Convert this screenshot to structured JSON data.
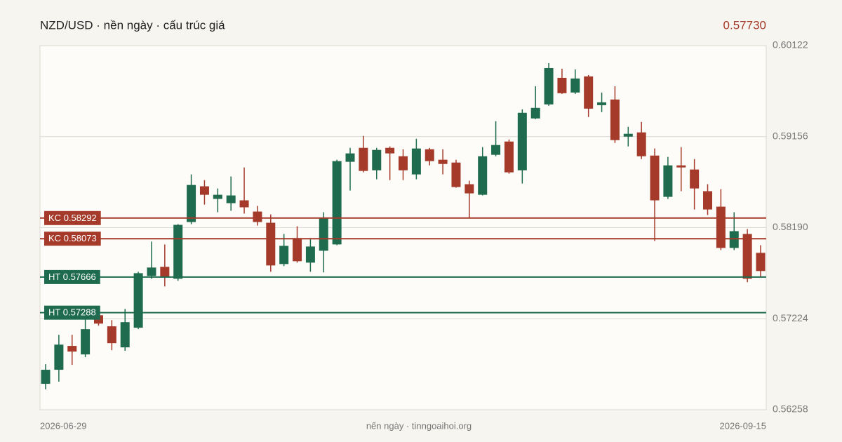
{
  "chart_data": {
    "type": "candlestick",
    "title": "NZD/USD · nền ngày · cấu trúc giá",
    "last_price": {
      "value": 0.5773,
      "label": "0.57730"
    },
    "footer": "nến ngày · tinngoaihoi.org",
    "categories": [
      "2026-06-29",
      null,
      null,
      null,
      null,
      null,
      null,
      null,
      null,
      null,
      null,
      null,
      null,
      null,
      null,
      null,
      null,
      null,
      null,
      null,
      null,
      null,
      null,
      null,
      null,
      null,
      null,
      null,
      null,
      null,
      null,
      null,
      null,
      null,
      null,
      null,
      null,
      null,
      null,
      null,
      null,
      null,
      null,
      null,
      null,
      null,
      null,
      null,
      null,
      null,
      null,
      null,
      null,
      null,
      "2026-09-15"
    ],
    "open": [
      0.56533,
      0.56682,
      0.56935,
      0.56845,
      0.57261,
      0.57143,
      0.5692,
      0.57128,
      0.57678,
      0.57774,
      0.57648,
      0.5825,
      0.58629,
      0.58495,
      0.5845,
      0.5848,
      0.58361,
      0.58242,
      0.57804,
      0.58079,
      0.57819,
      0.57945,
      0.58012,
      0.58889,
      0.59037,
      0.58799,
      0.59037,
      0.58948,
      0.58755,
      0.59022,
      0.58911,
      0.58881,
      0.58651,
      0.58539,
      0.58963,
      0.59104,
      0.58799,
      0.59349,
      0.59498,
      0.5978,
      0.59624,
      0.59795,
      0.5949,
      0.5955,
      0.59156,
      0.59201,
      0.58955,
      0.58517,
      0.58851,
      0.58807,
      0.58577,
      0.58413,
      0.57975,
      0.58123,
      0.57923
    ],
    "high": [
      0.56741,
      0.57053,
      0.57053,
      0.57224,
      0.57336,
      0.57209,
      0.57328,
      0.57722,
      0.58042,
      0.58012,
      0.58227,
      0.58755,
      0.58695,
      0.58606,
      0.58733,
      0.58829,
      0.58421,
      0.58331,
      0.58123,
      0.58205,
      0.58079,
      0.58354,
      0.58911,
      0.59037,
      0.59164,
      0.59037,
      0.59052,
      0.59022,
      0.59134,
      0.59037,
      0.59022,
      0.58911,
      0.58688,
      0.59045,
      0.5932,
      0.59126,
      0.59446,
      0.59691,
      0.59936,
      0.59877,
      0.59869,
      0.5981,
      0.59624,
      0.59691,
      0.5926,
      0.59312,
      0.5903,
      0.58941,
      0.59045,
      0.58918,
      0.58651,
      0.58599,
      0.58354,
      0.58175,
      0.58004
    ],
    "low": [
      0.56474,
      0.56556,
      0.56734,
      0.56816,
      0.5715,
      0.5689,
      0.56883,
      0.57113,
      0.57648,
      0.57566,
      0.57626,
      0.58227,
      0.58435,
      0.58354,
      0.58369,
      0.58339,
      0.58212,
      0.57722,
      0.57782,
      0.57819,
      0.57722,
      0.57715,
      0.58004,
      0.58584,
      0.58777,
      0.58703,
      0.58695,
      0.58695,
      0.58703,
      0.58851,
      0.58755,
      0.58614,
      0.58287,
      0.58532,
      0.58948,
      0.58762,
      0.58658,
      0.59342,
      0.59483,
      0.59609,
      0.59609,
      0.59364,
      0.59416,
      0.59089,
      0.59052,
      0.58918,
      0.58049,
      0.58495,
      0.58577,
      0.58383,
      0.58324,
      0.57952,
      0.57952,
      0.57611,
      0.57663
    ],
    "close": [
      0.56682,
      0.56949,
      0.56875,
      0.57113,
      0.57172,
      0.56964,
      0.57187,
      0.57707,
      0.57767,
      0.57663,
      0.5822,
      0.58643,
      0.58539,
      0.58539,
      0.58532,
      0.58406,
      0.5825,
      0.57789,
      0.57997,
      0.57834,
      0.5799,
      0.58294,
      0.58896,
      0.58978,
      0.58792,
      0.59015,
      0.58978,
      0.58799,
      0.5903,
      0.58896,
      0.58866,
      0.58621,
      0.58554,
      0.58948,
      0.59067,
      0.58777,
      0.59409,
      0.59461,
      0.59884,
      0.59617,
      0.59773,
      0.59453,
      0.5952,
      0.59119,
      0.59186,
      0.58948,
      0.5848,
      0.58851,
      0.58829,
      0.58606,
      0.58383,
      0.57975,
      0.58153,
      0.57648,
      0.5773
    ],
    "up_color": "#1e6b50",
    "down_color": "#a63a2a",
    "ylim": [
      0.56258,
      0.60122
    ],
    "yticks": [
      0.56258,
      0.57224,
      {
        "value": 0.5819,
        "label": "0.58190"
      },
      0.59156,
      0.60122
    ],
    "grid": true,
    "levels": [
      {
        "name": "KC",
        "value": 0.58292,
        "color": "#a63a2a"
      },
      {
        "name": "KC",
        "value": 0.58073,
        "color": "#a63a2a"
      },
      {
        "name": "HT",
        "value": 0.57666,
        "color": "#1e6b50"
      },
      {
        "name": "HT",
        "value": 0.57288,
        "color": "#1e6b50"
      }
    ]
  }
}
